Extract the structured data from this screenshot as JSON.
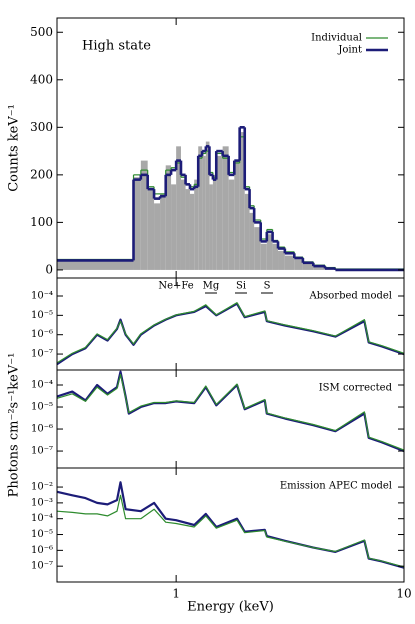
{
  "chart_data": [
    {
      "type": "histogram",
      "annotation": "High state",
      "ylabel": "Counts keV⁻¹",
      "xlim": [
        0.3,
        10
      ],
      "xticks": [
        1,
        10
      ],
      "log_x": true,
      "ylim": [
        -17,
        530
      ],
      "yticks": [
        0,
        100,
        200,
        300,
        400,
        500
      ],
      "legend": "upper right",
      "bins": [
        0.3,
        0.65,
        0.7,
        0.75,
        0.8,
        0.85,
        0.9,
        0.95,
        1.0,
        1.05,
        1.1,
        1.15,
        1.2,
        1.25,
        1.3,
        1.35,
        1.4,
        1.45,
        1.5,
        1.6,
        1.7,
        1.8,
        1.9,
        2.0,
        2.1,
        2.2,
        2.35,
        2.5,
        2.65,
        2.8,
        3.0,
        3.3,
        3.6,
        4.0,
        4.5,
        5.0,
        10
      ],
      "data_color": "#a8a8a8",
      "data_values": [
        20,
        195,
        230,
        170,
        140,
        160,
        220,
        180,
        260,
        190,
        170,
        160,
        190,
        260,
        240,
        270,
        180,
        200,
        240,
        260,
        190,
        230,
        290,
        160,
        120,
        90,
        55,
        75,
        55,
        40,
        30,
        22,
        13,
        7,
        3,
        0
      ],
      "series": [
        {
          "name": "Individual",
          "color": "#2e8b2e",
          "values": [
            22,
            200,
            210,
            175,
            160,
            160,
            210,
            215,
            225,
            195,
            180,
            175,
            180,
            235,
            245,
            250,
            205,
            195,
            245,
            235,
            205,
            225,
            280,
            175,
            135,
            105,
            65,
            85,
            62,
            48,
            38,
            27,
            17,
            10,
            5,
            2
          ]
        },
        {
          "name": "Joint",
          "color": "#1c1c78",
          "values": [
            20,
            190,
            200,
            170,
            150,
            155,
            200,
            210,
            230,
            200,
            180,
            170,
            175,
            240,
            250,
            260,
            200,
            190,
            250,
            240,
            200,
            230,
            300,
            170,
            130,
            100,
            60,
            80,
            60,
            45,
            35,
            25,
            15,
            8,
            3,
            0
          ]
        }
      ]
    },
    {
      "type": "line",
      "annotation": "Absorbed model",
      "line_labels": [
        "Ne+Fe",
        "Mg",
        "Si",
        "S"
      ],
      "xlim": [
        0.3,
        10
      ],
      "xticks": [
        1,
        10
      ],
      "log_x": true,
      "log_y": true,
      "ylim": [
        1.5e-08,
        0.00085
      ],
      "yticks": [
        {
          "value": 0.0001,
          "label": "10⁻⁴"
        },
        {
          "value": 1e-05,
          "label": "10⁻⁵"
        },
        {
          "value": 1e-06,
          "label": "10⁻⁶"
        },
        {
          "value": 1e-07,
          "label": "10⁻⁷"
        }
      ],
      "x": [
        0.3,
        0.35,
        0.4,
        0.45,
        0.5,
        0.55,
        0.57,
        0.6,
        0.65,
        0.7,
        0.8,
        0.9,
        1.0,
        1.2,
        1.35,
        1.5,
        1.85,
        2.0,
        2.45,
        2.5,
        3,
        4,
        5,
        6.7,
        7,
        8,
        10
      ],
      "series": [
        {
          "name": "Joint",
          "color": "#1c1c78",
          "values": [
            3e-08,
            1e-07,
            2e-07,
            1e-06,
            5e-07,
            2e-06,
            6e-06,
            1e-06,
            3e-07,
            1e-06,
            3e-06,
            6e-06,
            1e-05,
            1.5e-05,
            3e-05,
            1e-05,
            4e-05,
            8e-06,
            1.5e-05,
            5e-06,
            3e-06,
            1.5e-06,
            8e-07,
            5e-06,
            4e-07,
            2.5e-07,
            1e-07
          ]
        },
        {
          "name": "Individual",
          "color": "#2e8b2e",
          "values": [
            3.5e-08,
            1.1e-07,
            2.2e-07,
            1.1e-06,
            5.5e-07,
            2.2e-06,
            5e-06,
            1.1e-06,
            3.3e-07,
            1.1e-06,
            3.2e-06,
            6.3e-06,
            1.05e-05,
            1.6e-05,
            3.5e-05,
            1.05e-05,
            4.5e-05,
            8.5e-06,
            1.7e-05,
            5.3e-06,
            3.2e-06,
            1.6e-06,
            8.5e-07,
            6e-06,
            4.3e-07,
            2.7e-07,
            1.1e-07
          ]
        }
      ]
    },
    {
      "type": "line",
      "annotation": "ISM corrected",
      "ylabel": "Photons cm⁻²s⁻¹keV⁻¹",
      "xlim": [
        0.3,
        10
      ],
      "xticks": [
        1,
        10
      ],
      "log_x": true,
      "log_y": true,
      "ylim": [
        1.7e-08,
        0.00048
      ],
      "yticks": [
        {
          "value": 0.0001,
          "label": "10⁻⁴"
        },
        {
          "value": 1e-05,
          "label": "10⁻⁵"
        },
        {
          "value": 1e-06,
          "label": "10⁻⁶"
        },
        {
          "value": 1e-07,
          "label": "10⁻⁷"
        }
      ],
      "x": [
        0.3,
        0.35,
        0.4,
        0.45,
        0.5,
        0.55,
        0.57,
        0.6,
        0.62,
        0.7,
        0.8,
        0.9,
        1.0,
        1.2,
        1.35,
        1.5,
        1.85,
        2.0,
        2.45,
        2.5,
        3,
        4,
        5,
        6.7,
        7,
        8,
        10
      ],
      "series": [
        {
          "name": "Joint",
          "color": "#1c1c78",
          "values": [
            3e-05,
            5e-05,
            2e-05,
            0.0001,
            4e-05,
            8e-05,
            0.0004,
            3e-05,
            5e-06,
            1e-05,
            1.5e-05,
            1.5e-05,
            1.8e-05,
            1.5e-05,
            8e-05,
            1.2e-05,
            0.0001,
            8e-06,
            2e-05,
            5e-06,
            3e-06,
            1.5e-06,
            8e-07,
            5e-06,
            4e-07,
            2.5e-07,
            1e-07
          ]
        },
        {
          "name": "Individual",
          "color": "#2e8b2e",
          "values": [
            2.5e-05,
            4e-05,
            1.8e-05,
            8e-05,
            3.5e-05,
            7e-05,
            0.0003,
            2.8e-05,
            5.5e-06,
            1.1e-05,
            1.6e-05,
            1.6e-05,
            1.9e-05,
            1.6e-05,
            9e-05,
            1.3e-05,
            0.00011,
            8.5e-06,
            2.2e-05,
            5.3e-06,
            3.2e-06,
            1.6e-06,
            8.5e-07,
            6e-06,
            4.3e-07,
            2.7e-07,
            1.1e-07
          ]
        }
      ]
    },
    {
      "type": "line",
      "annotation": "Emission APEC model",
      "xlabel": "Energy (keV)",
      "xlim": [
        0.3,
        10
      ],
      "xticks": [
        1,
        10
      ],
      "log_x": true,
      "log_y": true,
      "ylim": [
        1e-08,
        0.16
      ],
      "yticks": [
        {
          "value": 0.01,
          "label": "10⁻²"
        },
        {
          "value": 0.001,
          "label": "10⁻³"
        },
        {
          "value": 0.0001,
          "label": "10⁻⁴"
        },
        {
          "value": 1e-05,
          "label": "10⁻⁵"
        },
        {
          "value": 1e-06,
          "label": "10⁻⁶"
        },
        {
          "value": 1e-07,
          "label": "10⁻⁷"
        }
      ],
      "x": [
        0.3,
        0.35,
        0.4,
        0.45,
        0.5,
        0.55,
        0.57,
        0.6,
        0.7,
        0.8,
        0.9,
        1.0,
        1.2,
        1.35,
        1.5,
        1.85,
        2.0,
        2.45,
        2.5,
        3,
        4,
        5,
        6.7,
        7,
        8,
        10
      ],
      "series": [
        {
          "name": "Joint",
          "color": "#1c1c78",
          "values": [
            0.005,
            0.003,
            0.002,
            0.001,
            0.0008,
            0.0015,
            0.02,
            0.0004,
            0.0003,
            0.001,
            0.0001,
            8e-05,
            4e-05,
            0.0002,
            3e-05,
            0.0001,
            1.5e-05,
            2e-05,
            8e-06,
            4e-06,
            1.5e-06,
            8e-07,
            4e-06,
            3e-07,
            2e-07,
            8e-08
          ]
        },
        {
          "name": "Individual",
          "color": "#2e8b2e",
          "values": [
            0.0003,
            0.00025,
            0.0002,
            0.0002,
            0.00015,
            0.0003,
            0.003,
            0.0001,
            0.0001,
            0.0004,
            6e-05,
            5e-05,
            3e-05,
            0.00015,
            2.5e-05,
            8e-05,
            1.3e-05,
            1.8e-05,
            7e-06,
            3.8e-06,
            1.5e-06,
            8.5e-07,
            4.5e-06,
            3.2e-07,
            2.1e-07,
            9e-08
          ]
        }
      ]
    }
  ]
}
